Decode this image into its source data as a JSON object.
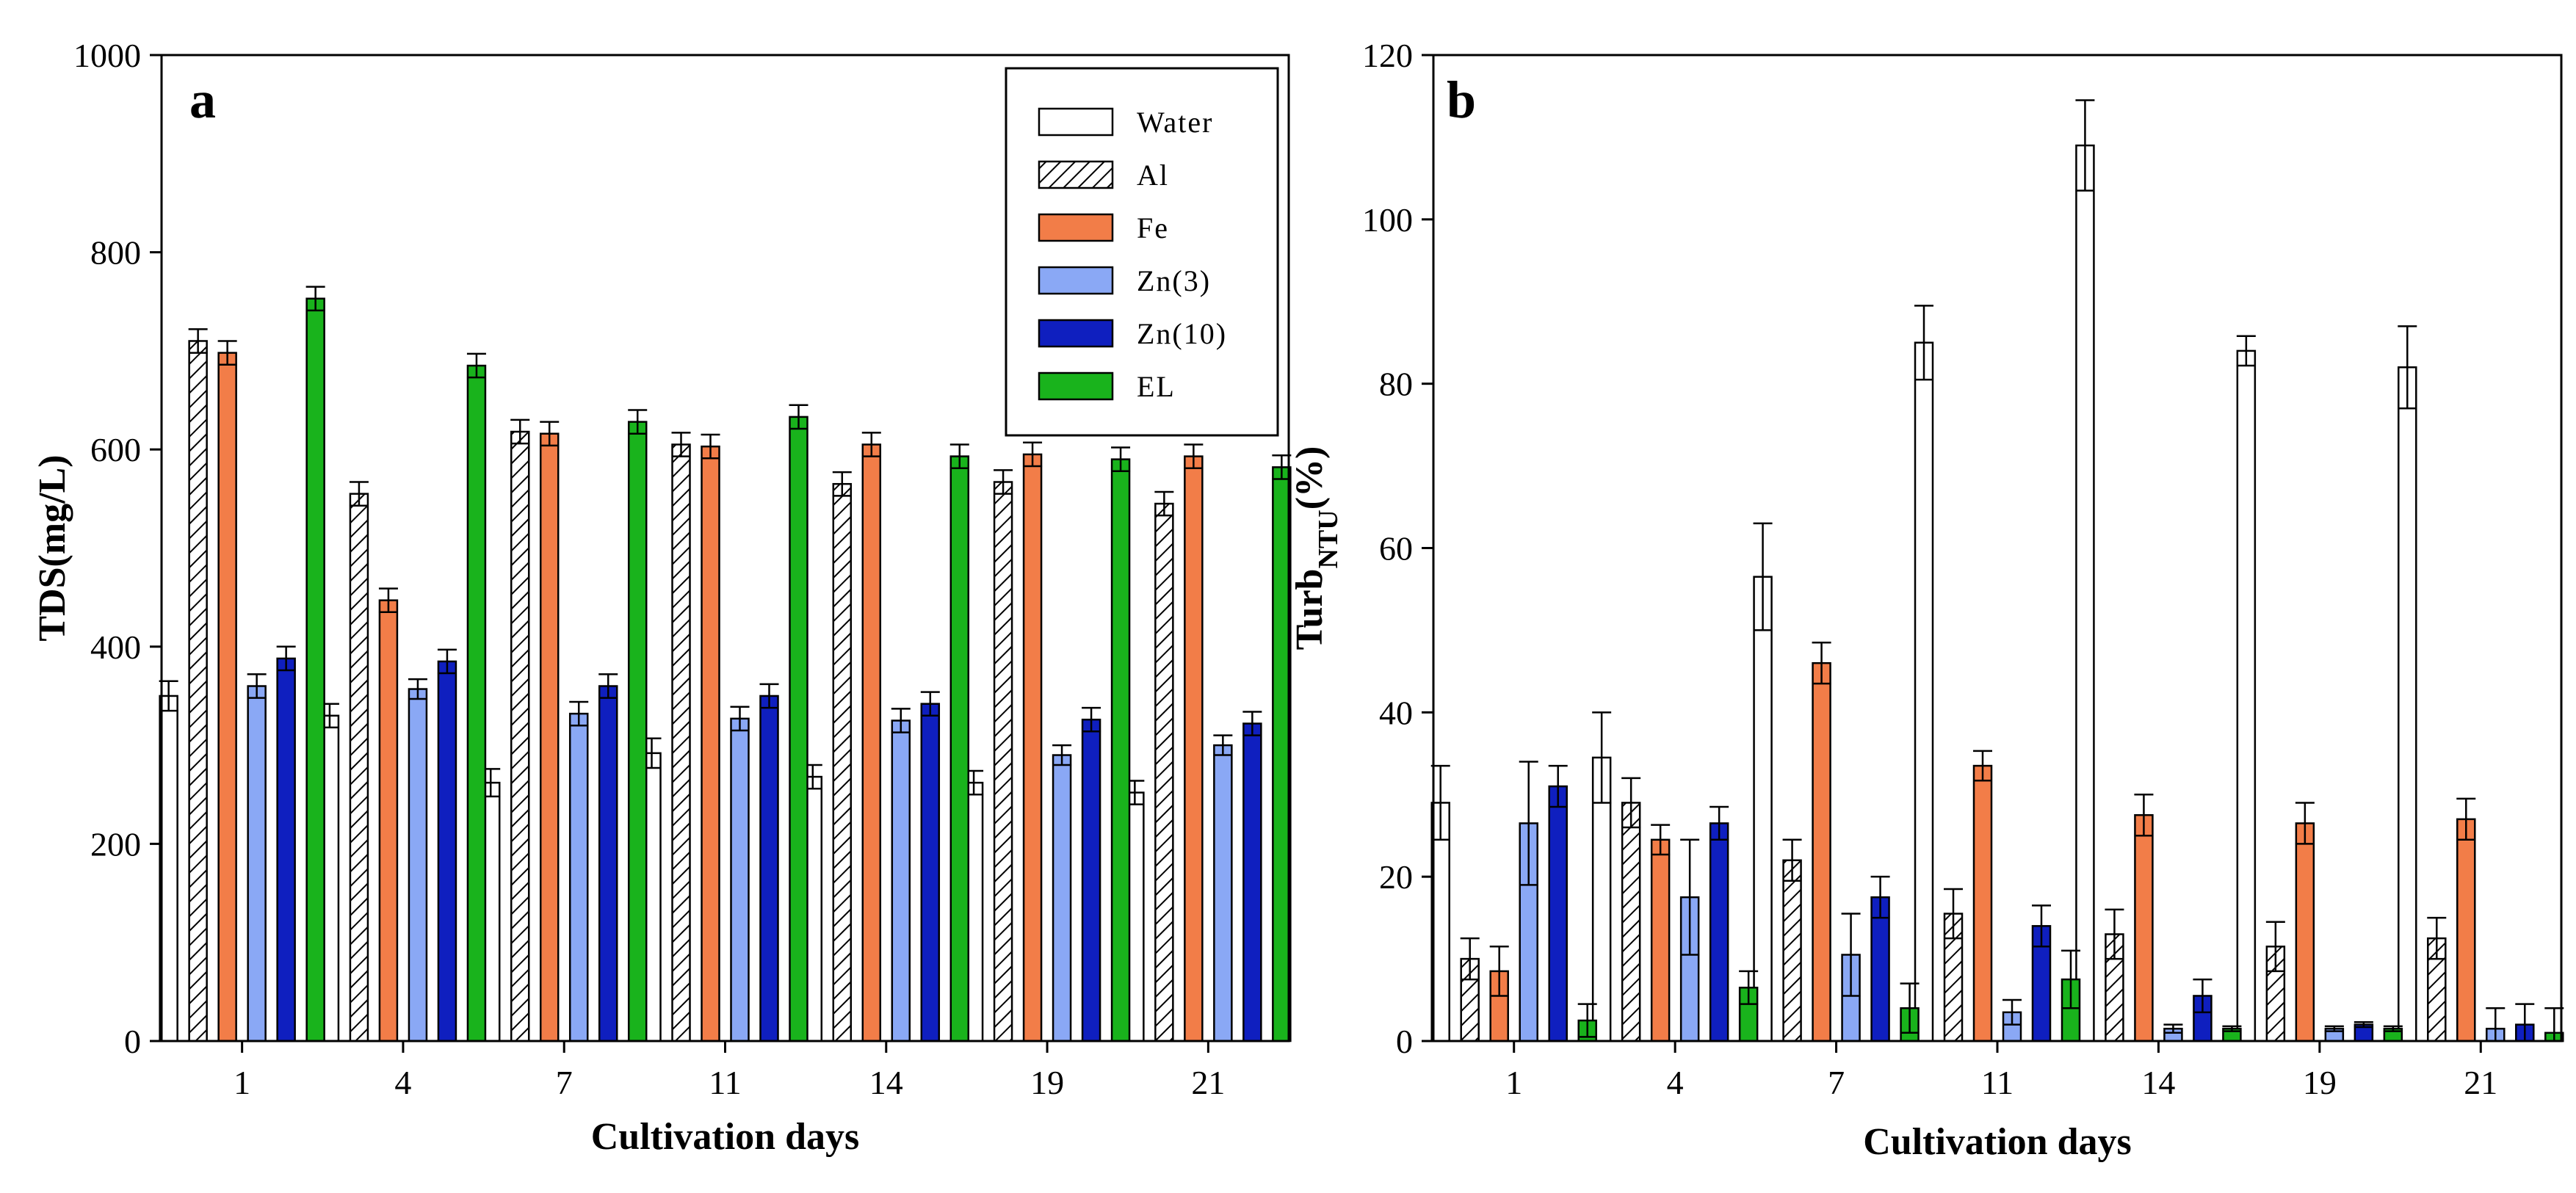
{
  "colors": {
    "Water": "#ffffff",
    "Al": "hatch",
    "Fe": "#f27d48",
    "Zn(3)": "#8aa8f5",
    "Zn(10)": "#0f1fbf",
    "EL": "#19b31c"
  },
  "chart_data": [
    {
      "type": "bar",
      "panel": "a",
      "xlabel": "Cultivation days",
      "ylabel": "TDS(mg/L)",
      "ylim": [
        0,
        1000
      ],
      "yticks": [
        0,
        200,
        400,
        600,
        800,
        1000
      ],
      "categories": [
        "1",
        "4",
        "7",
        "11",
        "14",
        "19",
        "21"
      ],
      "legend": {
        "position": "top-right",
        "entries": [
          "Water",
          "Al",
          "Fe",
          "Zn(3)",
          "Zn(10)",
          "EL"
        ]
      },
      "series": [
        {
          "name": "Water",
          "values": [
            350,
            330,
            262,
            292,
            268,
            262,
            252
          ],
          "errors": [
            15,
            12,
            14,
            15,
            12,
            12,
            12
          ]
        },
        {
          "name": "Al",
          "values": [
            710,
            555,
            618,
            605,
            565,
            567,
            545
          ],
          "errors": [
            12,
            12,
            12,
            12,
            12,
            12,
            12
          ]
        },
        {
          "name": "Fe",
          "values": [
            698,
            447,
            616,
            603,
            605,
            595,
            593
          ],
          "errors": [
            12,
            12,
            12,
            12,
            12,
            12,
            12
          ]
        },
        {
          "name": "Zn(3)",
          "values": [
            360,
            357,
            332,
            327,
            325,
            290,
            300
          ],
          "errors": [
            12,
            10,
            12,
            12,
            12,
            10,
            10
          ]
        },
        {
          "name": "Zn(10)",
          "values": [
            388,
            385,
            360,
            350,
            342,
            326,
            322
          ],
          "errors": [
            12,
            12,
            12,
            12,
            12,
            12,
            12
          ]
        },
        {
          "name": "EL",
          "values": [
            753,
            685,
            628,
            633,
            593,
            590,
            582
          ],
          "errors": [
            12,
            12,
            12,
            12,
            12,
            12,
            12
          ]
        }
      ]
    },
    {
      "type": "bar",
      "panel": "b",
      "xlabel": "Cultivation days",
      "ylabel": "Turb",
      "ylabel_sub": "NTU",
      "ylabel_suffix": "(%)",
      "ylim": [
        0,
        120
      ],
      "yticks": [
        0,
        20,
        40,
        60,
        80,
        100,
        120
      ],
      "categories": [
        "1",
        "4",
        "7",
        "11",
        "14",
        "19",
        "21"
      ],
      "series": [
        {
          "name": "Water",
          "values": [
            29,
            34.5,
            56.5,
            85,
            109,
            84,
            82
          ],
          "errors": [
            4.5,
            5.5,
            6.5,
            4.5,
            5.5,
            1.8,
            5
          ]
        },
        {
          "name": "Al",
          "values": [
            10,
            29,
            22,
            15.5,
            13,
            11.5,
            12.5
          ],
          "errors": [
            2.5,
            3,
            2.5,
            3,
            3,
            3,
            2.5
          ]
        },
        {
          "name": "Fe",
          "values": [
            8.5,
            24.5,
            46,
            33.5,
            27.5,
            26.5,
            27
          ],
          "errors": [
            3,
            1.8,
            2.5,
            1.8,
            2.5,
            2.5,
            2.5
          ]
        },
        {
          "name": "Zn(3)",
          "values": [
            26.5,
            17.5,
            10.5,
            3.5,
            1.5,
            1.5,
            1.5
          ],
          "errors": [
            7.5,
            7,
            5,
            1.5,
            0.5,
            0.3,
            2.5
          ]
        },
        {
          "name": "Zn(10)",
          "values": [
            31,
            26.5,
            17.5,
            14,
            5.5,
            2,
            2
          ],
          "errors": [
            2.5,
            2,
            2.5,
            2.5,
            2,
            0.3,
            2.5
          ]
        },
        {
          "name": "EL",
          "values": [
            2.5,
            6.5,
            4,
            7.5,
            1.5,
            1.5,
            1
          ],
          "errors": [
            2,
            2,
            3,
            3.5,
            0.3,
            0.3,
            3
          ]
        }
      ]
    }
  ]
}
